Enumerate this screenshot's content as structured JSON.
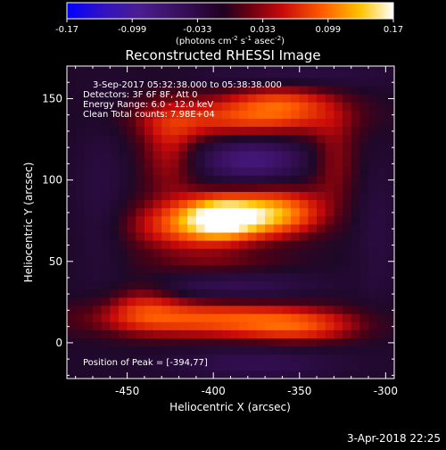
{
  "colorbar": {
    "ticks": [
      "-0.17",
      "-0.099",
      "-0.033",
      "0.033",
      "0.099",
      "0.17"
    ],
    "units_prefix": "(photons cm",
    "units_exp1": "-2",
    "units_mid": " s",
    "units_exp2": "-1",
    "units_mid2": " asec",
    "units_exp3": "-2",
    "units_suffix": ")"
  },
  "chart_data": {
    "type": "heatmap",
    "title": "Reconstructed RHESSI Image",
    "xlabel": "Heliocentric X (arcsec)",
    "ylabel": "Heliocentric Y (arcsec)",
    "xlim": [
      -485,
      -295
    ],
    "ylim": [
      -22,
      170
    ],
    "x_ticks": [
      -450,
      -400,
      -350,
      -300
    ],
    "y_ticks": [
      0,
      50,
      100,
      150
    ],
    "color_range": [
      -0.17,
      0.17
    ],
    "colormap": "RHESSI rainbow (blue-purple-red-orange-yellow-white)",
    "annotations": [
      "3-Sep-2017 05:32:38.000 to 05:38:38.000",
      "Detectors: 3F 6F 8F, Att 0",
      "Energy Range: 6.0 - 12.0 keV",
      "Clean    Total counts: 7.98E+04"
    ],
    "peak_label": "Position of Peak = [-394,77]",
    "peak": [
      -394,
      77
    ]
  },
  "footer": {
    "timestamp": "3-Apr-2018 22:25"
  }
}
